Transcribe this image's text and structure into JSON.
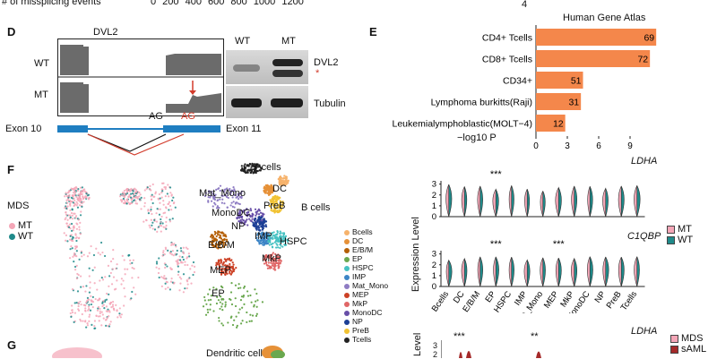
{
  "top_strip": {
    "caption": "# of missplicing events",
    "ticks": [
      "0",
      "200",
      "400",
      "600",
      "800",
      "1000",
      "1200"
    ],
    "right_value": "4"
  },
  "panelD": {
    "letter": "D",
    "gene": "DVL2",
    "tracks": [
      "WT",
      "MT"
    ],
    "ag_black": "AG",
    "ag_red": "AG",
    "exon_left": "Exon 10",
    "exon_right": "Exon 11",
    "blot_cols": [
      "WT",
      "MT"
    ],
    "blot_rows": [
      "DVL2",
      "Tubulin"
    ],
    "asterisk": "*"
  },
  "panelE": {
    "letter": "E",
    "title": "Human Gene Atlas",
    "xlabel": "−log10 P",
    "chart_data": {
      "type": "bar",
      "orientation": "horizontal",
      "title": "Human Gene Atlas",
      "xlabel": "−log10 P",
      "categories": [
        "CD4+ Tcells",
        "CD8+ Tcells",
        "CD34+",
        "Lymphoma burkitts(Raji)",
        "Leukemialymphoblastic(MOLT−4)"
      ],
      "values": [
        11.5,
        10.9,
        4.5,
        4.3,
        2.8
      ],
      "data_labels": [
        "69",
        "72",
        "51",
        "31",
        "12"
      ],
      "xticks": [
        0,
        3,
        6,
        9
      ],
      "xlim": [
        0,
        12
      ],
      "color": "#f4874b"
    }
  },
  "panelF": {
    "letter": "F",
    "legend_title": "MDS",
    "legend": [
      {
        "label": "MT",
        "color": "#f4a6b7"
      },
      {
        "label": "WT",
        "color": "#1f8a8a"
      }
    ],
    "cluster_labels": [
      "T cells",
      "DC",
      "Mat_Mono",
      "PreB",
      "B cells",
      "MonoDC",
      "NP",
      "IMP",
      "HSPC",
      "E/B/M",
      "MkP",
      "MEP",
      "EP"
    ],
    "celltypes": [
      {
        "label": "Bcells",
        "color": "#f6b26b"
      },
      {
        "label": "DC",
        "color": "#e69138"
      },
      {
        "label": "E/B/M",
        "color": "#b45f06"
      },
      {
        "label": "EP",
        "color": "#6aa84f"
      },
      {
        "label": "HSPC",
        "color": "#45c1c1"
      },
      {
        "label": "IMP",
        "color": "#3d85c6"
      },
      {
        "label": "Mat_Mono",
        "color": "#8e7cc3"
      },
      {
        "label": "MEP",
        "color": "#cc4125"
      },
      {
        "label": "MkP",
        "color": "#e06666"
      },
      {
        "label": "MonoDC",
        "color": "#674ea7"
      },
      {
        "label": "NP",
        "color": "#1c3f95"
      },
      {
        "label": "PreB",
        "color": "#f1c232"
      },
      {
        "label": "Tcells",
        "color": "#222222"
      }
    ],
    "violin": {
      "genes": [
        "LDHA",
        "C1QBP"
      ],
      "ylabel": "Expression Level",
      "yticks": [
        "0",
        "1",
        "2",
        "3"
      ],
      "categories": [
        "Bcells",
        "DC",
        "E/B/M",
        "EP",
        "HSPC",
        "IMP",
        "Mat_Mono",
        "MEP",
        "MkP",
        "MonoDC",
        "NP",
        "PreB",
        "Tcells"
      ],
      "sig_top": [
        {
          "category": "EP",
          "label": "***"
        }
      ],
      "sig_bottom": [
        {
          "category": "EP",
          "label": "***"
        },
        {
          "category": "MEP",
          "label": "***"
        }
      ],
      "legend": [
        {
          "label": "MT",
          "color": "#f4a6b7"
        },
        {
          "label": "WT",
          "color": "#1f8a8a"
        }
      ]
    }
  },
  "panelG": {
    "letter": "G",
    "cluster_partial": "Dendritic cells",
    "gene": "LDHA",
    "ylabel_partial": "Level",
    "yticks": [
      "3",
      "2"
    ],
    "sig": [
      "***",
      "**"
    ],
    "legend": [
      {
        "label": "MDS",
        "color": "#f4a6b7"
      },
      {
        "label": "sAML",
        "color": "#a52a2a"
      }
    ]
  }
}
